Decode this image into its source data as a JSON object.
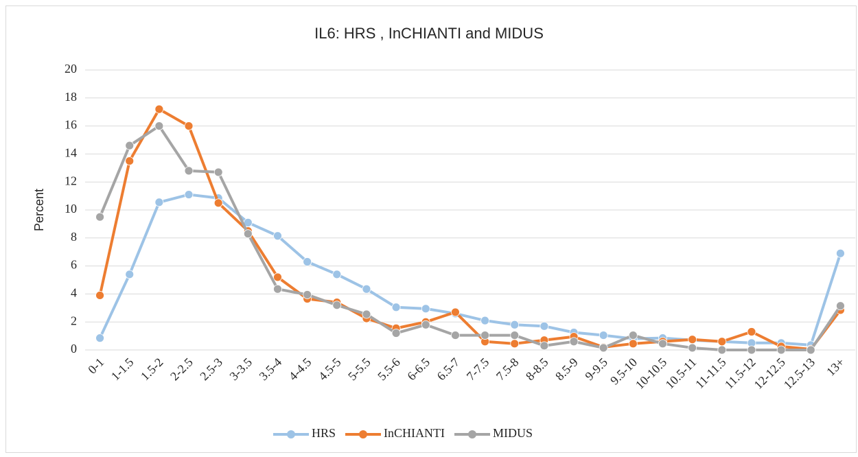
{
  "chart_data": {
    "type": "line",
    "title": "IL6: HRS , InCHIANTI and MIDUS",
    "y_label": "Percent",
    "categories": [
      "0-1",
      "1-1.5",
      "1.5-2",
      "2-2.5",
      "2.5-3",
      "3-3.5",
      "3.5-4",
      "4-4.5",
      "4.5-5",
      "5-5.5",
      "5.5-6",
      "6-6.5",
      "6.5-7",
      "7-7.5",
      "7.5-8",
      "8-8.5",
      "8.5-9",
      "9-9.5",
      "9.5-10",
      "10-10.5",
      "10.5-11",
      "11-11.5",
      "11.5-12",
      "12-12.5",
      "12.5-13",
      "13+"
    ],
    "series": [
      {
        "name": "HRS",
        "color": "#9dc3e6",
        "values": [
          0.85,
          5.4,
          10.55,
          11.1,
          10.85,
          9.1,
          8.15,
          6.3,
          5.4,
          4.35,
          3.05,
          2.95,
          2.6,
          2.1,
          1.8,
          1.7,
          1.25,
          1.05,
          0.8,
          0.85,
          0.7,
          0.6,
          0.5,
          0.5,
          0.35,
          6.9
        ]
      },
      {
        "name": "InCHIANTI",
        "color": "#ed7d31",
        "values": [
          3.9,
          13.5,
          17.2,
          16.0,
          10.5,
          8.5,
          5.2,
          3.65,
          3.4,
          2.25,
          1.55,
          2.0,
          2.7,
          0.6,
          0.45,
          0.7,
          0.95,
          0.2,
          0.45,
          0.6,
          0.75,
          0.6,
          1.3,
          0.25,
          0.05,
          2.85
        ]
      },
      {
        "name": "MIDUS",
        "color": "#a5a5a5",
        "values": [
          9.5,
          14.6,
          16.0,
          12.8,
          12.7,
          8.3,
          4.35,
          3.95,
          3.2,
          2.55,
          1.2,
          1.8,
          1.05,
          1.05,
          1.05,
          0.3,
          0.6,
          0.15,
          1.05,
          0.45,
          0.15,
          0.0,
          0.0,
          0.0,
          0.0,
          3.15
        ]
      }
    ],
    "ylim": [
      0,
      20
    ],
    "yticks": [
      0,
      2,
      4,
      6,
      8,
      10,
      12,
      14,
      16,
      18,
      20
    ],
    "grid": true,
    "legend": "bottom"
  }
}
